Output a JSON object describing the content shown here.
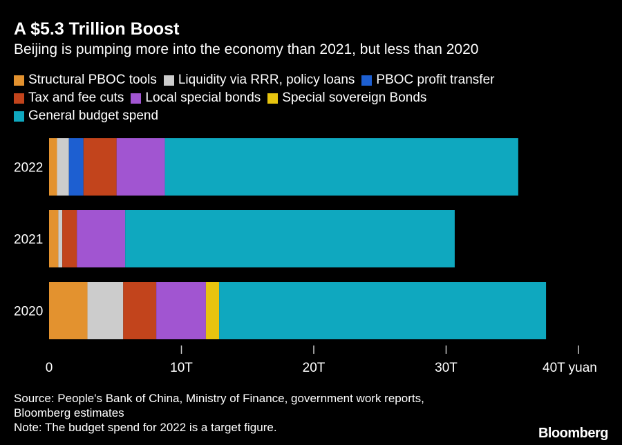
{
  "header": {
    "title": "A $5.3 Trillion Boost",
    "subtitle": "Beijing is pumping more into the economy than 2021, but less than 2020"
  },
  "footer": {
    "source_line1": "Source: People's Bank of China, Ministry of Finance, government work reports,",
    "source_line2": "Bloomberg estimates",
    "note": "Note: The budget spend for 2022 is a target figure.",
    "logo": "Bloomberg"
  },
  "colors": {
    "background": "#000000",
    "structural": "#e3922f",
    "liquidity": "#cccccc",
    "pboc_profit": "#1d5fd1",
    "tax": "#c2441c",
    "local_bonds": "#a155d1",
    "sovereign": "#e7c40f",
    "budget": "#0fa8bf"
  },
  "chart_data": {
    "type": "bar",
    "orientation": "horizontal",
    "stacked": true,
    "categories": [
      "2022",
      "2021",
      "2020"
    ],
    "series": [
      {
        "name": "Structural PBOC tools",
        "color": "#e3922f",
        "values": [
          0.6,
          0.7,
          2.9
        ]
      },
      {
        "name": "Liquidity via RRR, policy loans",
        "color": "#cccccc",
        "values": [
          0.9,
          0.3,
          2.7
        ]
      },
      {
        "name": "PBOC profit transfer",
        "color": "#1d5fd1",
        "values": [
          1.1,
          0,
          0
        ]
      },
      {
        "name": "Tax and fee cuts",
        "color": "#c2441c",
        "values": [
          2.5,
          1.1,
          2.5
        ]
      },
      {
        "name": "Local special bonds",
        "color": "#a155d1",
        "values": [
          3.65,
          3.65,
          3.75
        ]
      },
      {
        "name": "Special sovereign Bonds",
        "color": "#e7c40f",
        "values": [
          0,
          0,
          1.0
        ]
      },
      {
        "name": "General budget spend",
        "color": "#0fa8bf",
        "values": [
          26.7,
          24.9,
          24.7
        ]
      }
    ],
    "xlim": [
      0,
      40
    ],
    "x_ticks": [
      {
        "value": 0,
        "label": "0"
      },
      {
        "value": 10,
        "label": "10T"
      },
      {
        "value": 20,
        "label": "20T"
      },
      {
        "value": 30,
        "label": "30T"
      },
      {
        "value": 40,
        "label": "40T"
      }
    ],
    "x_unit": "yuan",
    "legend_position": "top-left",
    "grid": false
  }
}
